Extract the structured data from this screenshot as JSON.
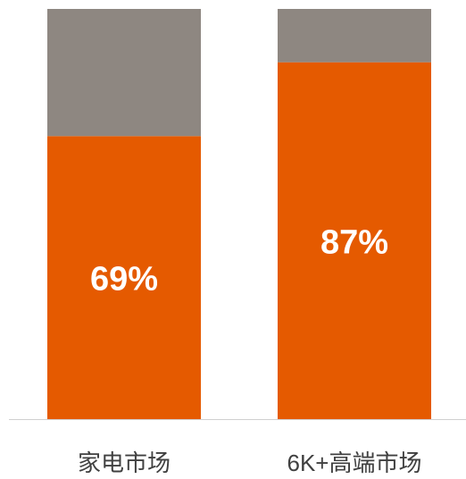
{
  "chart_data": {
    "type": "stacked_bar",
    "categories": [
      "家电市场",
      "6K+高端市场"
    ],
    "series": [
      {
        "color": "#e55a00",
        "values": [
          69,
          87
        ],
        "value_labels": [
          "69%",
          "87%"
        ]
      },
      {
        "color": "#8e8781",
        "values": [
          31,
          13
        ]
      }
    ],
    "ylim": [
      0,
      100
    ]
  }
}
